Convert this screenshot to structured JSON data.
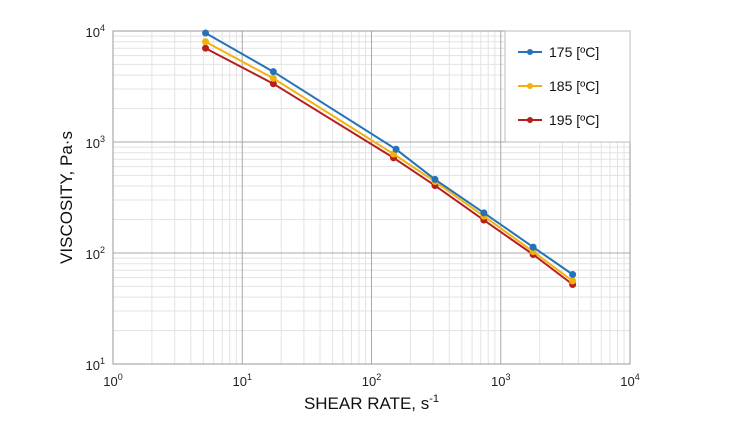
{
  "chart_data": {
    "type": "line",
    "x_scale": "log",
    "y_scale": "log",
    "xlim": [
      1,
      10000
    ],
    "ylim": [
      10,
      10000
    ],
    "grid": true,
    "legend_position": "top-right",
    "xlabel": {
      "text": "SHEAR RATE, s",
      "sup": "-1"
    },
    "ylabel": "VISCOSITY, Pa·s",
    "x_ticks": [
      {
        "base": "10",
        "exp": "0",
        "value": 1
      },
      {
        "base": "10",
        "exp": "1",
        "value": 10
      },
      {
        "base": "10",
        "exp": "2",
        "value": 100
      },
      {
        "base": "10",
        "exp": "3",
        "value": 1000
      },
      {
        "base": "10",
        "exp": "4",
        "value": 10000
      }
    ],
    "y_ticks": [
      {
        "base": "10",
        "exp": "1",
        "value": 10
      },
      {
        "base": "10",
        "exp": "2",
        "value": 100
      },
      {
        "base": "10",
        "exp": "3",
        "value": 1000
      },
      {
        "base": "10",
        "exp": "4",
        "value": 10000
      }
    ],
    "series": [
      {
        "name": "175 [ºC]",
        "color": "#2672b8",
        "points": [
          [
            5.2,
            9600
          ],
          [
            17.4,
            4300
          ],
          [
            155,
            860
          ],
          [
            310,
            460
          ],
          [
            740,
            230
          ],
          [
            1780,
            113
          ],
          [
            3600,
            64
          ]
        ]
      },
      {
        "name": "185 [ºC]",
        "color": "#f2b20e",
        "points": [
          [
            5.2,
            8000
          ],
          [
            17.4,
            3750
          ],
          [
            148,
            780
          ],
          [
            310,
            440
          ],
          [
            740,
            215
          ],
          [
            1780,
            103
          ],
          [
            3600,
            56
          ]
        ]
      },
      {
        "name": "195 [ºC]",
        "color": "#b71f1f",
        "points": [
          [
            5.2,
            7000
          ],
          [
            17.4,
            3350
          ],
          [
            148,
            720
          ],
          [
            310,
            405
          ],
          [
            740,
            198
          ],
          [
            1780,
            97
          ],
          [
            3600,
            52
          ]
        ]
      }
    ]
  }
}
